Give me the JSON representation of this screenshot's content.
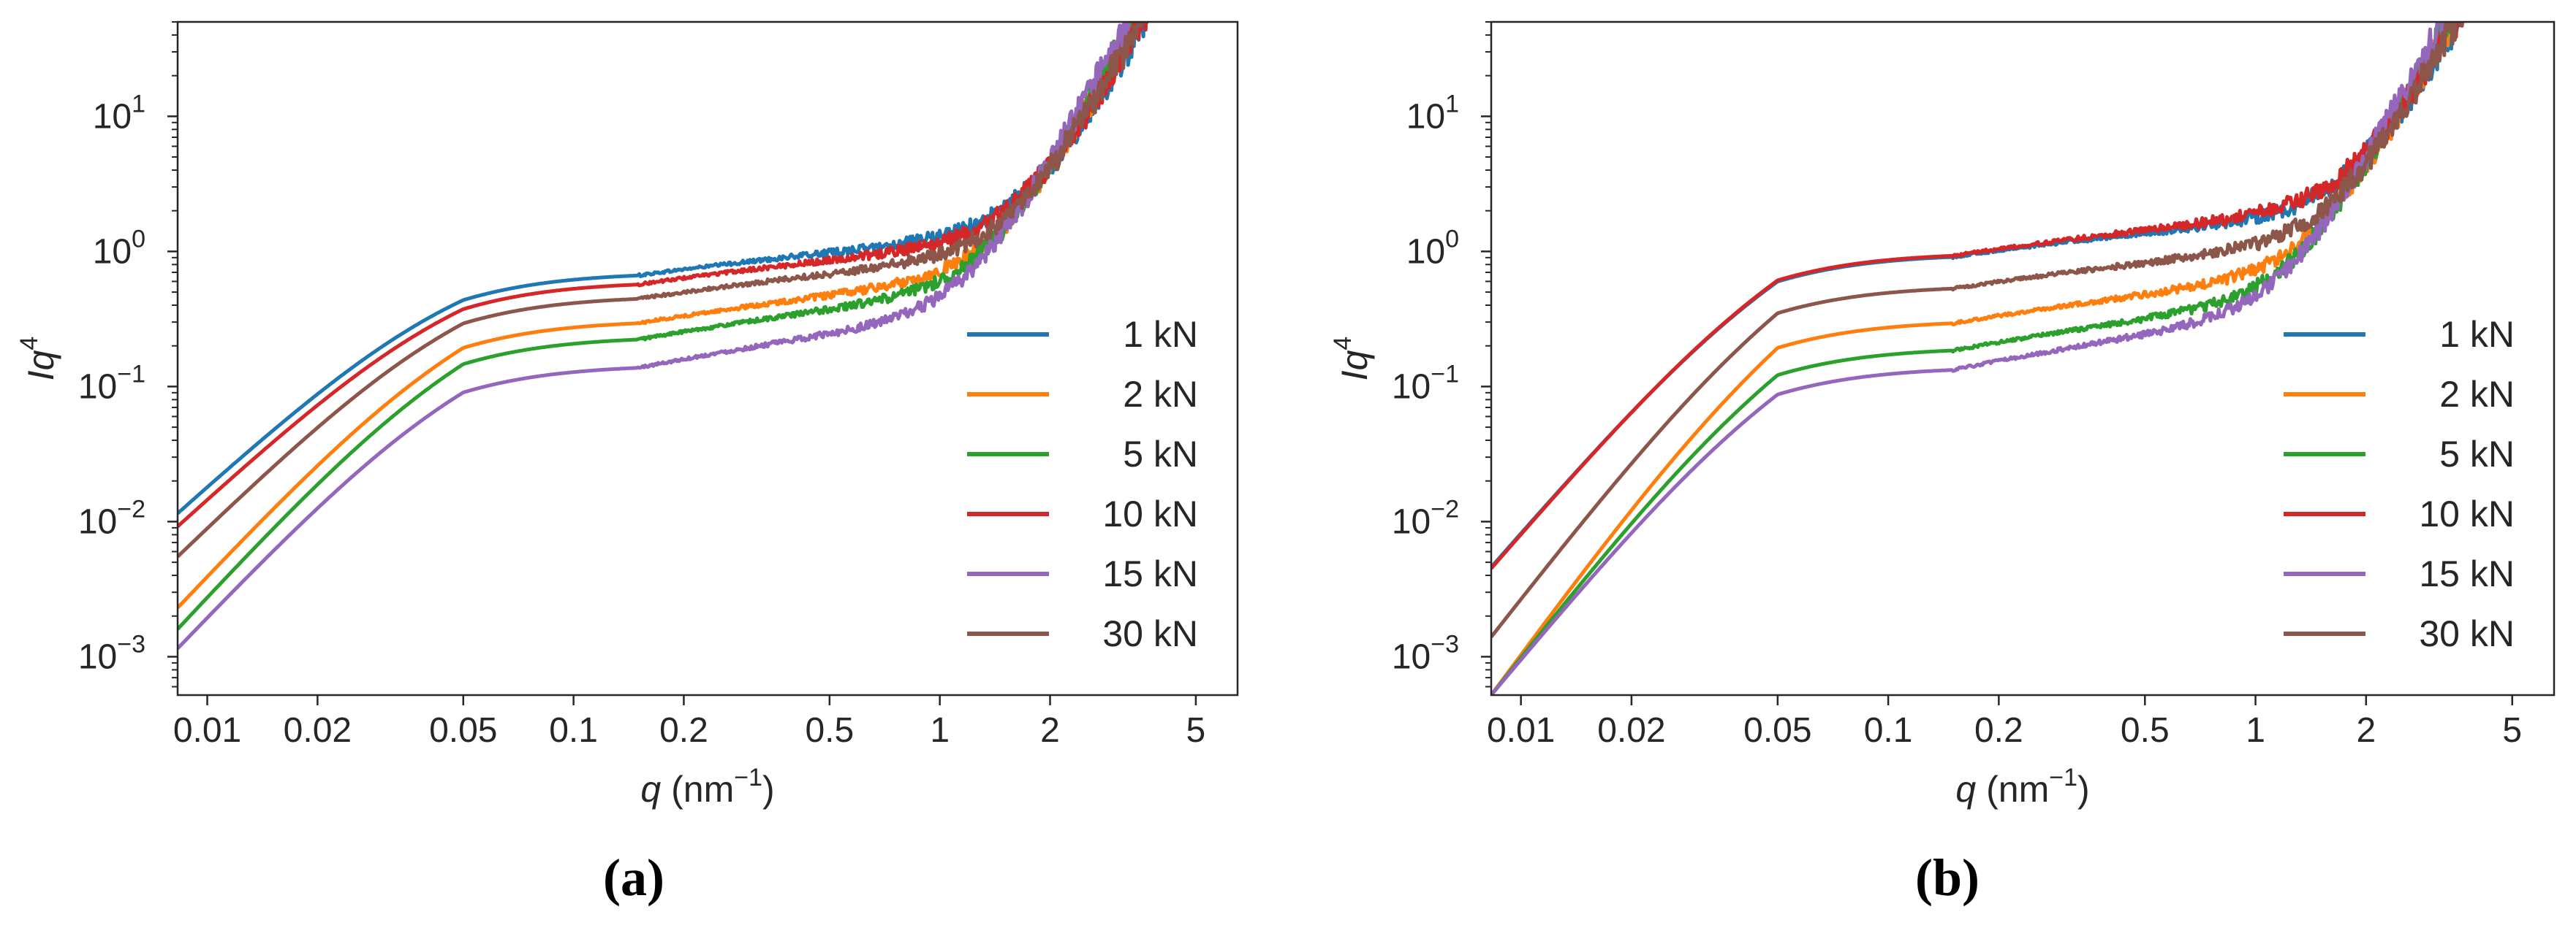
{
  "colors": {
    "1 kN": "#1f77b4",
    "2 kN": "#ff7f0e",
    "5 kN": "#2ca02c",
    "10 kN": "#d62728",
    "15 kN": "#9467bd",
    "30 kN": "#8c564b",
    "axes": "#262626"
  },
  "chart_data": [
    {
      "panel": "(a)",
      "type": "line",
      "xscale": "log",
      "yscale": "log",
      "xlabel": "q",
      "xlabel_unit": "(nm",
      "xlabel_exp": "−1",
      "xlabel_close": ")",
      "ylabel": "Iq",
      "ylabel_exp": "4",
      "xlim": [
        0.0083,
        6.5
      ],
      "ylim": [
        0.00052,
        50
      ],
      "x_ticks": [
        {
          "value": 0.01,
          "label": "0.01"
        },
        {
          "value": 0.02,
          "label": "0.02"
        },
        {
          "value": 0.05,
          "label": "0.05"
        },
        {
          "value": 0.1,
          "label": "0.1"
        },
        {
          "value": 0.2,
          "label": "0.2"
        },
        {
          "value": 0.5,
          "label": "0.5"
        },
        {
          "value": 1,
          "label": "1"
        },
        {
          "value": 2,
          "label": "2"
        },
        {
          "value": 5,
          "label": "5"
        }
      ],
      "y_ticks": [
        {
          "value": 0.001,
          "base": "10",
          "exp": "−3"
        },
        {
          "value": 0.01,
          "base": "10",
          "exp": "−2"
        },
        {
          "value": 0.1,
          "base": "10",
          "exp": "−1"
        },
        {
          "value": 1,
          "base": "10",
          "exp": "0"
        },
        {
          "value": 10,
          "base": "10",
          "exp": "1"
        }
      ],
      "legend_position": "lower-right",
      "series": [
        {
          "name": "1 kN",
          "plateau": 0.7,
          "low_q_value": 0.0115,
          "mid_slope": 0.28,
          "noise": 0.02
        },
        {
          "name": "2 kN",
          "plateau": 0.31,
          "low_q_value": 0.0023,
          "mid_slope": 0.35,
          "noise": 0.02
        },
        {
          "name": "5 kN",
          "plateau": 0.235,
          "low_q_value": 0.0016,
          "mid_slope": 0.38,
          "noise": 0.02
        },
        {
          "name": "10 kN",
          "plateau": 0.6,
          "low_q_value": 0.0092,
          "mid_slope": 0.3,
          "noise": 0.02
        },
        {
          "name": "15 kN",
          "plateau": 0.145,
          "low_q_value": 0.00115,
          "mid_slope": 0.43,
          "noise": 0.02
        },
        {
          "name": "30 kN",
          "plateau": 0.47,
          "low_q_value": 0.0055,
          "mid_slope": 0.31,
          "noise": 0.02
        }
      ]
    },
    {
      "panel": "(b)",
      "type": "line",
      "xscale": "log",
      "yscale": "log",
      "xlabel": "q",
      "xlabel_unit": "(nm",
      "xlabel_exp": "−1",
      "xlabel_close": ")",
      "ylabel": "Iq",
      "ylabel_exp": "4",
      "xlim": [
        0.0083,
        6.5
      ],
      "ylim": [
        0.00052,
        50
      ],
      "x_ticks": [
        {
          "value": 0.01,
          "label": "0.01"
        },
        {
          "value": 0.02,
          "label": "0.02"
        },
        {
          "value": 0.05,
          "label": "0.05"
        },
        {
          "value": 0.1,
          "label": "0.1"
        },
        {
          "value": 0.2,
          "label": "0.2"
        },
        {
          "value": 0.5,
          "label": "0.5"
        },
        {
          "value": 1,
          "label": "1"
        },
        {
          "value": 2,
          "label": "2"
        },
        {
          "value": 5,
          "label": "5"
        }
      ],
      "y_ticks": [
        {
          "value": 0.001,
          "base": "10",
          "exp": "−3"
        },
        {
          "value": 0.01,
          "base": "10",
          "exp": "−2"
        },
        {
          "value": 0.1,
          "base": "10",
          "exp": "−1"
        },
        {
          "value": 1,
          "base": "10",
          "exp": "0"
        },
        {
          "value": 10,
          "base": "10",
          "exp": "1"
        }
      ],
      "legend_position": "lower-right",
      "series": [
        {
          "name": "1 kN",
          "plateau": 0.96,
          "low_q_value": 0.0046,
          "mid_slope": 0.3,
          "noise": 0.02
        },
        {
          "name": "2 kN",
          "plateau": 0.31,
          "low_q_value": 0.00052,
          "mid_slope": 0.36,
          "noise": 0.02
        },
        {
          "name": "5 kN",
          "plateau": 0.195,
          "low_q_value": 0.00052,
          "mid_slope": 0.4,
          "noise": 0.02
        },
        {
          "name": "10 kN",
          "plateau": 0.98,
          "low_q_value": 0.0045,
          "mid_slope": 0.32,
          "noise": 0.02
        },
        {
          "name": "15 kN",
          "plateau": 0.14,
          "low_q_value": 0.00052,
          "mid_slope": 0.45,
          "noise": 0.02
        },
        {
          "name": "30 kN",
          "plateau": 0.56,
          "low_q_value": 0.0014,
          "mid_slope": 0.32,
          "noise": 0.02
        }
      ]
    }
  ]
}
